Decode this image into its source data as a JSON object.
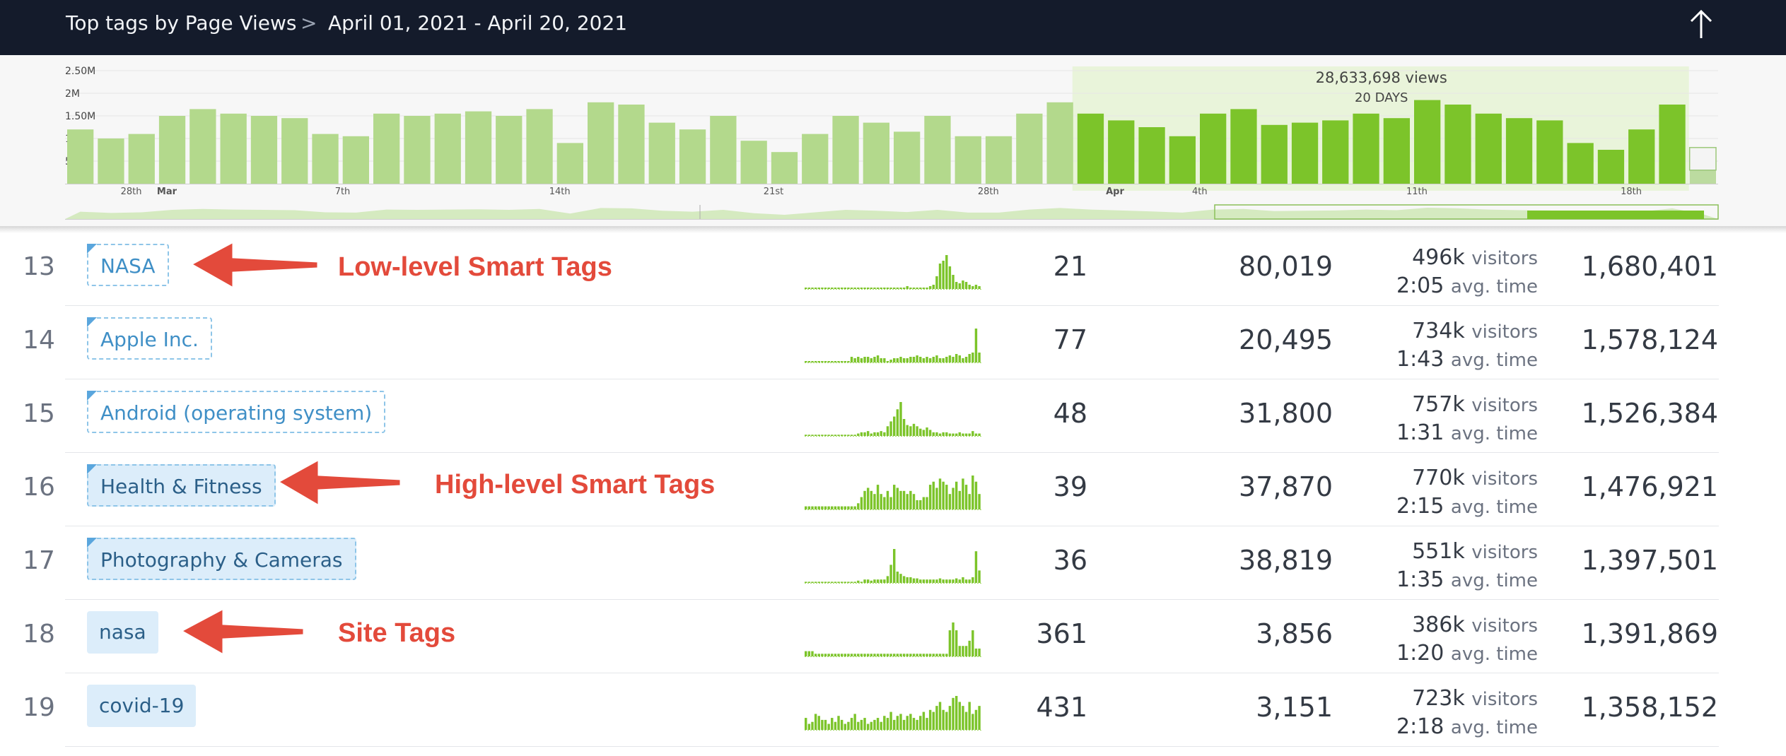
{
  "header": {
    "title": "Top tags by Page Views",
    "separator": ">",
    "date_range": "April 01, 2021 - April 20, 2021",
    "up_icon": "arrow-up-icon"
  },
  "overview": {
    "selection_views": "28,633,698 views",
    "selection_days": "20 DAYS",
    "y_ticks": [
      "2.50M",
      "2M",
      "1.50M",
      "1M",
      "500k"
    ],
    "x_labels": [
      {
        "text": "28th",
        "bold": false
      },
      {
        "text": "Mar",
        "bold": true
      },
      {
        "text": "7th",
        "bold": false
      },
      {
        "text": "14th",
        "bold": false
      },
      {
        "text": "21st",
        "bold": false
      },
      {
        "text": "28th",
        "bold": false
      },
      {
        "text": "Apr",
        "bold": true
      },
      {
        "text": "4th",
        "bold": false
      },
      {
        "text": "11th",
        "bold": false
      },
      {
        "text": "18th",
        "bold": false
      }
    ]
  },
  "chart_data": {
    "type": "bar",
    "title": "",
    "xlabel": "",
    "ylabel": "",
    "ylim": [
      0,
      2500000
    ],
    "series": [
      {
        "values": [
          1200000,
          1000000,
          1100000,
          1500000,
          1650000,
          1550000,
          1500000,
          1450000,
          1100000,
          1050000,
          1550000,
          1500000,
          1550000,
          1600000,
          1500000,
          1650000,
          900000,
          1800000,
          1750000,
          1350000,
          1200000,
          1500000,
          950000,
          700000,
          1100000,
          1500000,
          1350000,
          1150000,
          1500000,
          1050000,
          1050000,
          1550000,
          1800000,
          1550000,
          1400000,
          1250000,
          1050000,
          1550000,
          1650000,
          1300000,
          1350000,
          1400000,
          1550000,
          1450000,
          1850000,
          1750000,
          1550000,
          1450000,
          1400000,
          900000,
          750000,
          1200000,
          1750000,
          800000
        ]
      }
    ],
    "selected_range_days": 20
  },
  "legend_annotations": {
    "low": "Low-level Smart Tags",
    "high": "High-level Smart Tags",
    "site": "Site Tags"
  },
  "rows": [
    {
      "rank": "13",
      "tag": "NASA",
      "kind": "low",
      "count": "21",
      "col2": "80,019",
      "visitors_num": "496k",
      "visitors_label": "visitors",
      "avg_time": "2:05",
      "avg_label": "avg. time",
      "page_views": "1,680,401",
      "spark": [
        1,
        1,
        1,
        1,
        1,
        1,
        1,
        1,
        1,
        1,
        1,
        1,
        1,
        1,
        1,
        1,
        1,
        1,
        1,
        1,
        1,
        1,
        1,
        1,
        1,
        1,
        1,
        1,
        1,
        1,
        1,
        2,
        1,
        1,
        1,
        1,
        1,
        1,
        2,
        3,
        9,
        18,
        20,
        24,
        16,
        10,
        5,
        4,
        6,
        5,
        3,
        2,
        3,
        2
      ]
    },
    {
      "rank": "14",
      "tag": "Apple Inc.",
      "kind": "low",
      "count": "77",
      "col2": "20,495",
      "visitors_num": "734k",
      "visitors_label": "visitors",
      "avg_time": "1:43",
      "avg_label": "avg. time",
      "page_views": "1,578,124",
      "spark": [
        1,
        1,
        1,
        1,
        1,
        1,
        1,
        1,
        1,
        1,
        1,
        1,
        1,
        1,
        4,
        3,
        4,
        3,
        4,
        4,
        3,
        4,
        5,
        3,
        3,
        1,
        2,
        3,
        3,
        4,
        3,
        3,
        4,
        4,
        5,
        4,
        3,
        4,
        3,
        4,
        5,
        3,
        3,
        4,
        5,
        4,
        6,
        5,
        3,
        4,
        6,
        7,
        24,
        7
      ]
    },
    {
      "rank": "15",
      "tag": "Android (operating system)",
      "kind": "low",
      "count": "48",
      "col2": "31,800",
      "visitors_num": "757k",
      "visitors_label": "visitors",
      "avg_time": "1:31",
      "avg_label": "avg. time",
      "page_views": "1,526,384",
      "spark": [
        1,
        1,
        1,
        1,
        1,
        1,
        1,
        1,
        1,
        1,
        1,
        1,
        1,
        1,
        1,
        1,
        2,
        3,
        3,
        4,
        2,
        3,
        3,
        4,
        3,
        8,
        12,
        16,
        22,
        28,
        14,
        9,
        8,
        10,
        8,
        6,
        5,
        7,
        5,
        3,
        3,
        2,
        3,
        3,
        2,
        2,
        2,
        3,
        2,
        2,
        2,
        4,
        2,
        2
      ]
    },
    {
      "rank": "16",
      "tag": "Health & Fitness",
      "kind": "high",
      "count": "39",
      "col2": "37,870",
      "visitors_num": "770k",
      "visitors_label": "visitors",
      "avg_time": "2:15",
      "avg_label": "avg. time",
      "page_views": "1,476,921",
      "spark": [
        1,
        1,
        1,
        1,
        1,
        1,
        1,
        1,
        1,
        1,
        1,
        1,
        1,
        1,
        1,
        1,
        2,
        4,
        6,
        7,
        6,
        5,
        8,
        5,
        4,
        6,
        4,
        8,
        7,
        6,
        6,
        5,
        6,
        5,
        3,
        3,
        4,
        4,
        8,
        9,
        7,
        10,
        9,
        8,
        5,
        7,
        9,
        6,
        10,
        8,
        5,
        11,
        9,
        5
      ]
    },
    {
      "rank": "17",
      "tag": "Photography & Cameras",
      "kind": "high",
      "count": "36",
      "col2": "38,819",
      "visitors_num": "551k",
      "visitors_label": "visitors",
      "avg_time": "1:35",
      "avg_label": "avg. time",
      "page_views": "1,397,501",
      "spark": [
        1,
        1,
        1,
        1,
        1,
        1,
        1,
        1,
        1,
        1,
        1,
        1,
        1,
        1,
        1,
        1,
        2,
        1,
        3,
        3,
        2,
        3,
        3,
        3,
        3,
        6,
        16,
        30,
        10,
        8,
        6,
        5,
        5,
        4,
        4,
        3,
        3,
        3,
        3,
        3,
        3,
        4,
        3,
        3,
        3,
        3,
        4,
        3,
        5,
        3,
        3,
        5,
        28,
        11
      ]
    },
    {
      "rank": "18",
      "tag": "nasa",
      "kind": "site",
      "count": "361",
      "col2": "3,856",
      "visitors_num": "386k",
      "visitors_label": "visitors",
      "avg_time": "1:20",
      "avg_label": "avg. time",
      "page_views": "1,391,869",
      "spark": [
        2,
        2,
        2,
        1,
        1,
        1,
        1,
        1,
        1,
        1,
        1,
        1,
        1,
        1,
        1,
        1,
        1,
        1,
        1,
        1,
        1,
        1,
        1,
        1,
        1,
        1,
        1,
        1,
        1,
        1,
        1,
        1,
        1,
        1,
        1,
        1,
        1,
        1,
        1,
        1,
        1,
        1,
        1,
        1,
        10,
        13,
        10,
        4,
        4,
        4,
        6,
        10,
        3,
        3
      ]
    },
    {
      "rank": "19",
      "tag": "covid-19",
      "kind": "site",
      "count": "431",
      "col2": "3,151",
      "visitors_num": "723k",
      "visitors_label": "visitors",
      "avg_time": "2:18",
      "avg_label": "avg. time",
      "page_views": "1,358,152",
      "spark": [
        6,
        3,
        4,
        8,
        7,
        5,
        5,
        3,
        6,
        4,
        7,
        5,
        3,
        4,
        6,
        8,
        4,
        5,
        6,
        3,
        4,
        5,
        6,
        4,
        7,
        6,
        9,
        5,
        7,
        8,
        5,
        7,
        8,
        6,
        5,
        7,
        9,
        6,
        10,
        9,
        12,
        14,
        10,
        9,
        12,
        16,
        17,
        14,
        12,
        9,
        14,
        8,
        10,
        12
      ]
    }
  ]
}
